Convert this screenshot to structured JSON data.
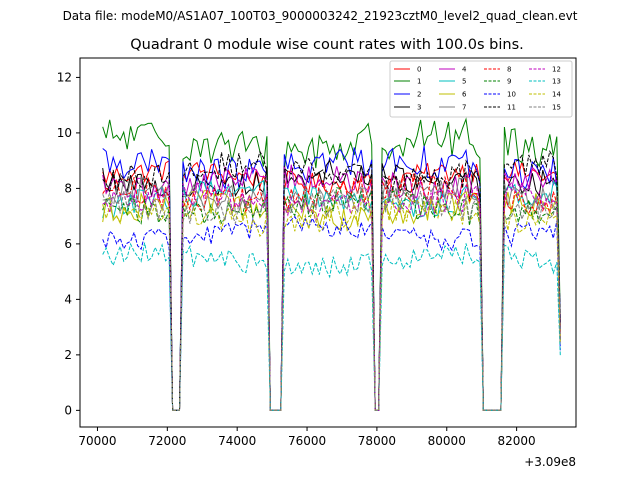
{
  "chart_data": {
    "type": "line",
    "suptitle": "Data file: modeM0/AS1A07_100T03_9000003242_21923cztM0_level2_quad_clean.evt",
    "title": "Quadrant 0 module wise count rates with 100.0s bins.",
    "xlabel": "",
    "ylabel": "",
    "x_offset_label": "+3.09e8",
    "xlim": [
      69500,
      83700
    ],
    "ylim": [
      -0.6,
      12.7
    ],
    "x_ticks": [
      70000,
      72000,
      74000,
      76000,
      78000,
      80000,
      82000
    ],
    "x_tick_labels": [
      "70000",
      "72000",
      "74000",
      "76000",
      "78000",
      "80000",
      "82000"
    ],
    "y_ticks": [
      0,
      2,
      4,
      6,
      8,
      10,
      12
    ],
    "y_tick_labels": [
      "0",
      "2",
      "4",
      "6",
      "8",
      "10",
      "12"
    ],
    "legend_position": "upper-right",
    "time_bin_s": 100,
    "x_start": 70150,
    "x_end": 83250,
    "gaps": [
      [
        72150,
        72350
      ],
      [
        74950,
        75250
      ],
      [
        77950,
        78050
      ],
      [
        81050,
        81550
      ]
    ],
    "series": [
      {
        "name": "0",
        "color": "#ff0000",
        "style": "solid",
        "mean": 8.4,
        "amp": 0.4
      },
      {
        "name": "1",
        "color": "#008000",
        "style": "solid",
        "mean": 9.6,
        "amp": 0.7
      },
      {
        "name": "2",
        "color": "#0000ff",
        "style": "solid",
        "mean": 8.8,
        "amp": 0.6
      },
      {
        "name": "3",
        "color": "#000000",
        "style": "solid",
        "mean": 8.3,
        "amp": 0.5
      },
      {
        "name": "4",
        "color": "#bf00bf",
        "style": "solid",
        "mean": 8.2,
        "amp": 0.5
      },
      {
        "name": "5",
        "color": "#00bfbf",
        "style": "solid",
        "mean": 7.6,
        "amp": 0.5
      },
      {
        "name": "6",
        "color": "#bfbf00",
        "style": "solid",
        "mean": 7.2,
        "amp": 0.5
      },
      {
        "name": "7",
        "color": "#808080",
        "style": "solid",
        "mean": 7.7,
        "amp": 0.5
      },
      {
        "name": "8",
        "color": "#ff0000",
        "style": "dashed",
        "mean": 7.8,
        "amp": 0.5
      },
      {
        "name": "9",
        "color": "#008000",
        "style": "dashed",
        "mean": 7.3,
        "amp": 0.5
      },
      {
        "name": "10",
        "color": "#0000ff",
        "style": "dashed",
        "mean": 6.4,
        "amp": 0.4
      },
      {
        "name": "11",
        "color": "#000000",
        "style": "dashed",
        "mean": 8.6,
        "amp": 0.5
      },
      {
        "name": "12",
        "color": "#bf00bf",
        "style": "dashed",
        "mean": 7.5,
        "amp": 0.5
      },
      {
        "name": "13",
        "color": "#00bfbf",
        "style": "dashed",
        "mean": 5.4,
        "amp": 0.4
      },
      {
        "name": "14",
        "color": "#bfbf00",
        "style": "dashed",
        "mean": 7.0,
        "amp": 0.5
      },
      {
        "name": "15",
        "color": "#808080",
        "style": "dashed",
        "mean": 7.4,
        "amp": 0.5
      }
    ]
  }
}
